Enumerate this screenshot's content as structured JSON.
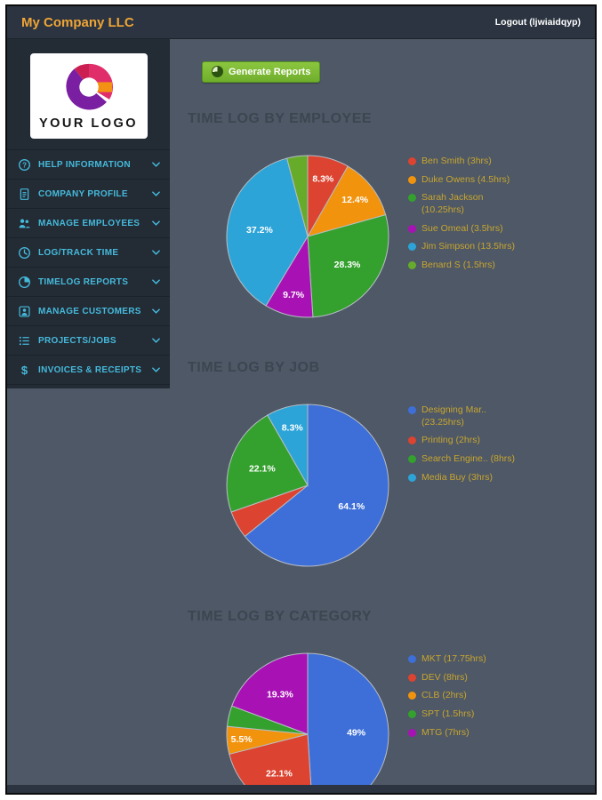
{
  "header": {
    "title": "My Company LLC",
    "logout_label": "Logout (ljwiaidqyp)"
  },
  "sidebar": {
    "logo_text": "YOUR LOGO",
    "items": [
      {
        "label": "HELP INFORMATION",
        "icon": "help-circle"
      },
      {
        "label": "COMPANY PROFILE",
        "icon": "clipboard"
      },
      {
        "label": "MANAGE EMPLOYEES",
        "icon": "people-group"
      },
      {
        "label": "LOG/TRACK TIME",
        "icon": "clock"
      },
      {
        "label": "TIMELOG REPORTS",
        "icon": "pie-chart"
      },
      {
        "label": "MANAGE CUSTOMERS",
        "icon": "person-badge"
      },
      {
        "label": "PROJECTS/JOBS",
        "icon": "list"
      },
      {
        "label": "INVOICES & RECEIPTS",
        "icon": "dollar-sign"
      }
    ]
  },
  "toolbar": {
    "generate_reports_label": "Generate Reports"
  },
  "colors": {
    "accent_cyan": "#45badb",
    "accent_yellow": "#efa536",
    "button_green": "#7cb832",
    "header_bg": "#2b3440",
    "sidebar_bg": "#232b35",
    "main_bg": "#4e5866",
    "legend_text": "#c8a52f",
    "heading_text": "#3c4651"
  },
  "chart_data": [
    {
      "type": "pie",
      "title": "TIME LOG BY EMPLOYEE",
      "legend_position": "right",
      "slices": [
        {
          "label": "Ben Smith (3hrs)",
          "value": 3,
          "pct_label": "8.3%",
          "color": "#dc4330",
          "show_pct": true
        },
        {
          "label": "Duke Owens (4.5hrs)",
          "value": 4.5,
          "pct_label": "12.4%",
          "color": "#f2930d",
          "show_pct": true
        },
        {
          "label": "Sarah Jackson (10.25hrs)",
          "value": 10.25,
          "pct_label": "28.3%",
          "color": "#34a12e",
          "show_pct": true
        },
        {
          "label": "Sue Omeal (3.5hrs)",
          "value": 3.5,
          "pct_label": "9.7%",
          "color": "#a812b5",
          "show_pct": true
        },
        {
          "label": "Jim Simpson (13.5hrs)",
          "value": 13.5,
          "pct_label": "37.2%",
          "color": "#2da4d8",
          "show_pct": true
        },
        {
          "label": "Benard S (1.5hrs)",
          "value": 1.5,
          "pct_label": "4.1%",
          "color": "#67ab2a",
          "show_pct": false
        }
      ]
    },
    {
      "type": "pie",
      "title": "TIME LOG BY JOB",
      "legend_position": "right",
      "slices": [
        {
          "label": "Designing Mar.. (23.25hrs)",
          "value": 23.25,
          "pct_label": "64.1%",
          "color": "#3e6fd8",
          "show_pct": true
        },
        {
          "label": "Printing (2hrs)",
          "value": 2,
          "pct_label": "5.5%",
          "color": "#dc4330",
          "show_pct": false
        },
        {
          "label": "Search Engine.. (8hrs)",
          "value": 8,
          "pct_label": "22.1%",
          "color": "#34a12e",
          "show_pct": true
        },
        {
          "label": "Media Buy (3hrs)",
          "value": 3,
          "pct_label": "8.3%",
          "color": "#2da4d8",
          "show_pct": true
        }
      ]
    },
    {
      "type": "pie",
      "title": "TIME LOG BY CATEGORY",
      "legend_position": "right",
      "slices": [
        {
          "label": "MKT (17.75hrs)",
          "value": 17.75,
          "pct_label": "49%",
          "color": "#3e6fd8",
          "show_pct": true
        },
        {
          "label": "DEV (8hrs)",
          "value": 8,
          "pct_label": "22.1%",
          "color": "#dc4330",
          "show_pct": true
        },
        {
          "label": "CLB (2hrs)",
          "value": 2,
          "pct_label": "5.5%",
          "color": "#f2930d",
          "show_pct": true
        },
        {
          "label": "SPT (1.5hrs)",
          "value": 1.5,
          "pct_label": "4.1%",
          "color": "#34a12e",
          "show_pct": false
        },
        {
          "label": "MTG (7hrs)",
          "value": 7,
          "pct_label": "19.3%",
          "color": "#a812b5",
          "show_pct": true
        }
      ]
    }
  ]
}
